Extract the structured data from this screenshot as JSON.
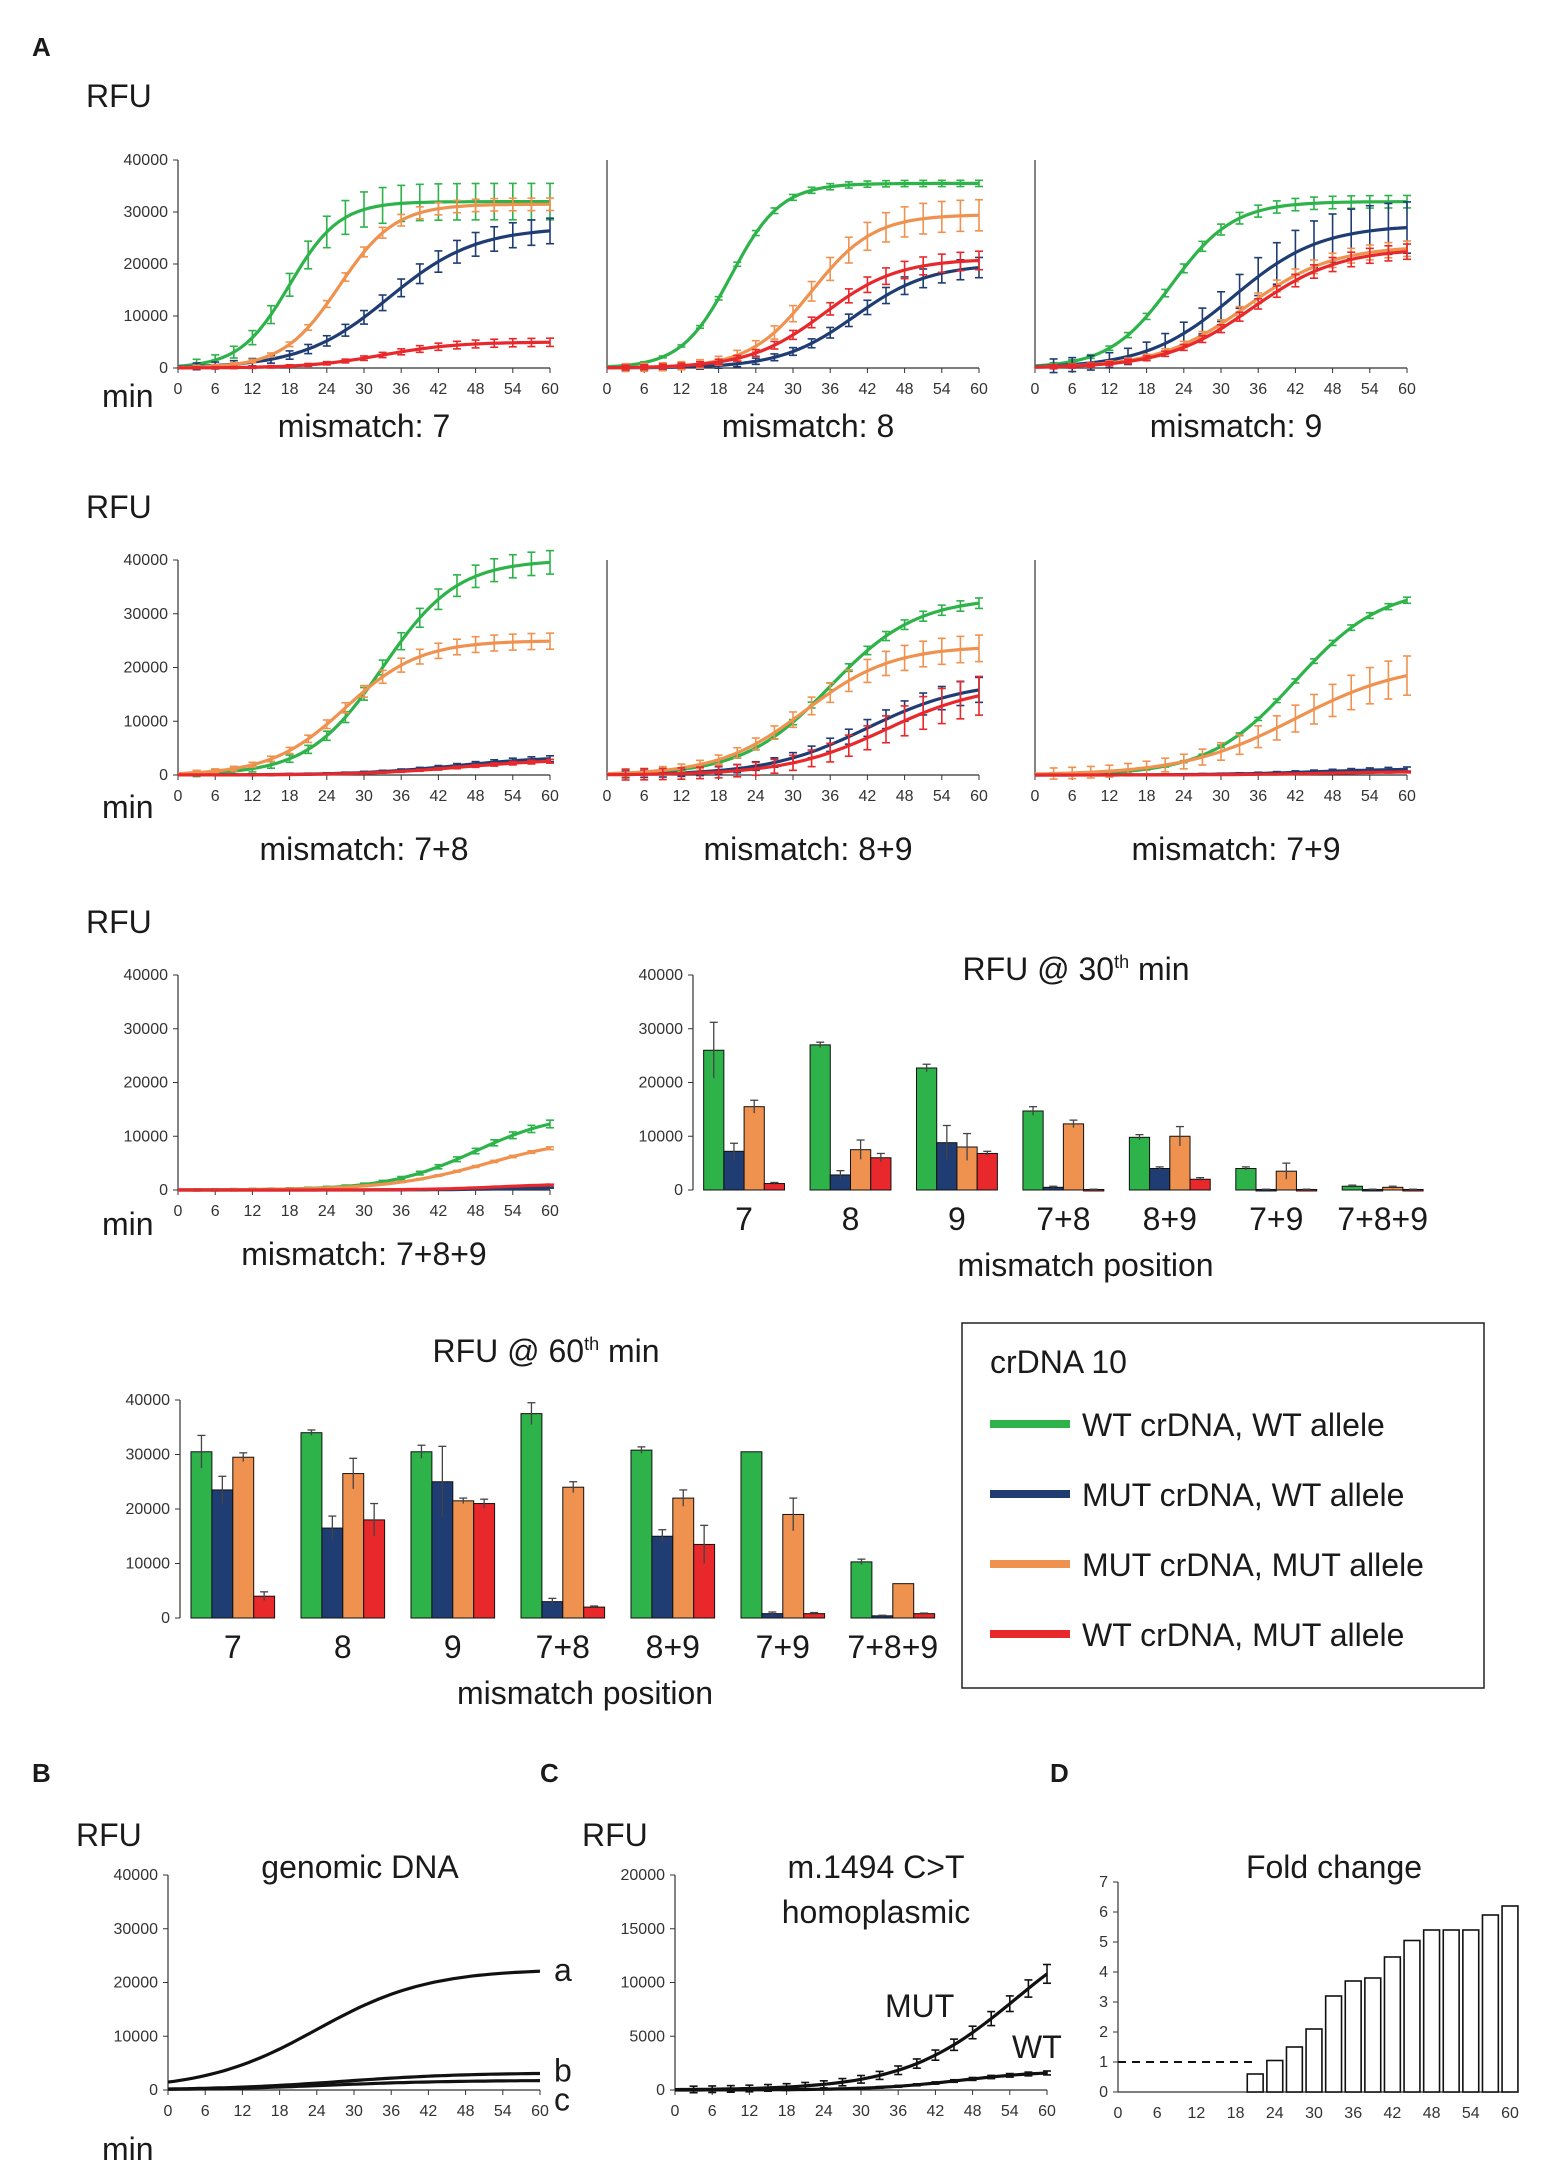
{
  "figure": {
    "panel_labels": [
      "A",
      "B",
      "C",
      "D"
    ],
    "legend": {
      "title": "crDNA 10",
      "entries": [
        {
          "label": "WT crDNA, WT allele",
          "color": "#2db34a"
        },
        {
          "label": "MUT crDNA, WT allele",
          "color": "#1f3d73"
        },
        {
          "label": "MUT crDNA, MUT allele",
          "color": "#f0924f"
        },
        {
          "label": "WT crDNA, MUT allele",
          "color": "#e8282b"
        }
      ]
    }
  },
  "colors": {
    "wt_wt": "#2db34a",
    "mut_wt": "#1f3d73",
    "mut_mut": "#f0924f",
    "wt_mut": "#e8282b",
    "black": "#111111"
  },
  "chart_data": [
    {
      "id": "mm7",
      "type": "line",
      "title": "mismatch: 7",
      "ylabel": "RFU",
      "xlabel": "min",
      "ylim": [
        0,
        40000
      ],
      "yticks": [
        "0",
        "10000",
        "20000",
        "30000",
        "40000"
      ],
      "xlim": [
        0,
        60
      ],
      "xticks": [
        "0",
        "6",
        "12",
        "18",
        "24",
        "30",
        "36",
        "42",
        "48",
        "54",
        "60"
      ],
      "series": [
        {
          "name": "WT crDNA, WT allele",
          "color": "#2db34a",
          "mid": 18,
          "scale": 4,
          "max": 32000,
          "err": 3500
        },
        {
          "name": "MUT crDNA, WT allele",
          "color": "#1f3d73",
          "mid": 34,
          "scale": 7,
          "max": 27000,
          "err": 2500
        },
        {
          "name": "MUT crDNA, MUT allele",
          "color": "#f0924f",
          "mid": 26,
          "scale": 4.5,
          "max": 31500,
          "err": 1200
        },
        {
          "name": "WT crDNA, MUT allele",
          "color": "#e8282b",
          "mid": 33,
          "scale": 6,
          "max": 5000,
          "err": 800
        }
      ]
    },
    {
      "id": "mm8",
      "type": "line",
      "title": "mismatch: 8",
      "ylabel": "",
      "xlabel": "",
      "ylim": [
        0,
        40000
      ],
      "yticks": [],
      "xlim": [
        0,
        60
      ],
      "xticks": [
        "0",
        "6",
        "12",
        "18",
        "24",
        "30",
        "36",
        "42",
        "48",
        "54",
        "60"
      ],
      "series": [
        {
          "name": "WT crDNA, WT allele",
          "color": "#2db34a",
          "mid": 20,
          "scale": 4,
          "max": 35500,
          "err": 600
        },
        {
          "name": "MUT crDNA, WT allele",
          "color": "#1f3d73",
          "mid": 40,
          "scale": 6,
          "max": 20000,
          "err": 2000
        },
        {
          "name": "MUT crDNA, MUT allele",
          "color": "#f0924f",
          "mid": 33,
          "scale": 5,
          "max": 29500,
          "err": 3000
        },
        {
          "name": "WT crDNA, MUT allele",
          "color": "#e8282b",
          "mid": 35,
          "scale": 6,
          "max": 21000,
          "err": 1800
        }
      ]
    },
    {
      "id": "mm9",
      "type": "line",
      "title": "mismatch: 9",
      "ylabel": "",
      "xlabel": "",
      "ylim": [
        0,
        40000
      ],
      "yticks": [],
      "xlim": [
        0,
        60
      ],
      "xticks": [
        "0",
        "6",
        "12",
        "18",
        "24",
        "30",
        "36",
        "42",
        "48",
        "54",
        "60"
      ],
      "series": [
        {
          "name": "WT crDNA, WT allele",
          "color": "#2db34a",
          "mid": 22,
          "scale": 5,
          "max": 32000,
          "err": 1200
        },
        {
          "name": "MUT crDNA, WT allele",
          "color": "#1f3d73",
          "mid": 32,
          "scale": 7,
          "max": 27500,
          "err": 5000
        },
        {
          "name": "MUT crDNA, MUT allele",
          "color": "#f0924f",
          "mid": 34,
          "scale": 7,
          "max": 23500,
          "err": 1500
        },
        {
          "name": "WT crDNA, MUT allele",
          "color": "#e8282b",
          "mid": 35,
          "scale": 7,
          "max": 23000,
          "err": 1500
        }
      ]
    },
    {
      "id": "mm78",
      "type": "line",
      "title": "mismatch: 7+8",
      "ylabel": "RFU",
      "xlabel": "min",
      "ylim": [
        0,
        40000
      ],
      "yticks": [
        "0",
        "10000",
        "20000",
        "30000",
        "40000"
      ],
      "xlim": [
        0,
        60
      ],
      "xticks": [
        "0",
        "6",
        "12",
        "18",
        "24",
        "30",
        "36",
        "42",
        "48",
        "54",
        "60"
      ],
      "series": [
        {
          "name": "WT crDNA, WT allele",
          "color": "#2db34a",
          "mid": 33,
          "scale": 6,
          "max": 40000,
          "err": 2200
        },
        {
          "name": "MUT crDNA, WT allele",
          "color": "#1f3d73",
          "mid": 45,
          "scale": 8,
          "max": 3500,
          "err": 600
        },
        {
          "name": "MUT crDNA, MUT allele",
          "color": "#f0924f",
          "mid": 27,
          "scale": 6,
          "max": 25000,
          "err": 1500
        },
        {
          "name": "WT crDNA, MUT allele",
          "color": "#e8282b",
          "mid": 46,
          "scale": 8,
          "max": 3000,
          "err": 400
        }
      ]
    },
    {
      "id": "mm89",
      "type": "line",
      "title": "mismatch: 8+9",
      "ylabel": "",
      "xlabel": "",
      "ylim": [
        0,
        40000
      ],
      "yticks": [],
      "xlim": [
        0,
        60
      ],
      "xticks": [
        "0",
        "6",
        "12",
        "18",
        "24",
        "30",
        "36",
        "42",
        "48",
        "54",
        "60"
      ],
      "series": [
        {
          "name": "WT crDNA, WT allele",
          "color": "#2db34a",
          "mid": 36,
          "scale": 7,
          "max": 33000,
          "err": 1000
        },
        {
          "name": "MUT crDNA, WT allele",
          "color": "#1f3d73",
          "mid": 42,
          "scale": 8,
          "max": 17500,
          "err": 2500
        },
        {
          "name": "MUT crDNA, MUT allele",
          "color": "#f0924f",
          "mid": 32,
          "scale": 7,
          "max": 24000,
          "err": 2500
        },
        {
          "name": "WT crDNA, MUT allele",
          "color": "#e8282b",
          "mid": 45,
          "scale": 8,
          "max": 17000,
          "err": 4000
        }
      ]
    },
    {
      "id": "mm79",
      "type": "line",
      "title": "mismatch: 7+9",
      "ylabel": "",
      "xlabel": "",
      "ylim": [
        0,
        40000
      ],
      "yticks": [],
      "xlim": [
        0,
        60
      ],
      "xticks": [
        "0",
        "6",
        "12",
        "18",
        "24",
        "30",
        "36",
        "42",
        "48",
        "54",
        "60"
      ],
      "series": [
        {
          "name": "WT crDNA, WT allele",
          "color": "#2db34a",
          "mid": 42,
          "scale": 7,
          "max": 35000,
          "err": 600
        },
        {
          "name": "MUT crDNA, WT allele",
          "color": "#1f3d73",
          "mid": 45,
          "scale": 8,
          "max": 1200,
          "err": 500
        },
        {
          "name": "MUT crDNA, MUT allele",
          "color": "#f0924f",
          "mid": 42,
          "scale": 9,
          "max": 21000,
          "err": 4000
        },
        {
          "name": "WT crDNA, MUT allele",
          "color": "#e8282b",
          "mid": 48,
          "scale": 8,
          "max": 700,
          "err": 200
        }
      ]
    },
    {
      "id": "mm789",
      "type": "line",
      "title": "mismatch: 7+8+9",
      "ylabel": "RFU",
      "xlabel": "min",
      "ylim": [
        0,
        40000
      ],
      "yticks": [
        "0",
        "10000",
        "20000",
        "30000",
        "40000"
      ],
      "xlim": [
        0,
        60
      ],
      "xticks": [
        "0",
        "6",
        "12",
        "18",
        "24",
        "30",
        "36",
        "42",
        "48",
        "54",
        "60"
      ],
      "series": [
        {
          "name": "WT crDNA, WT allele",
          "color": "#2db34a",
          "mid": 48,
          "scale": 7,
          "max": 14500,
          "err": 800
        },
        {
          "name": "MUT crDNA, WT allele",
          "color": "#1f3d73",
          "mid": 55,
          "scale": 6,
          "max": 600,
          "err": 100
        },
        {
          "name": "MUT crDNA, MUT allele",
          "color": "#f0924f",
          "mid": 50,
          "scale": 8,
          "max": 10000,
          "err": 300
        },
        {
          "name": "WT crDNA, MUT allele",
          "color": "#e8282b",
          "mid": 52,
          "scale": 6,
          "max": 1200,
          "err": 150
        }
      ]
    },
    {
      "id": "bar30",
      "type": "bar",
      "title": "RFU @ 30",
      "title_sup": "th",
      "title_end": " min",
      "xlabel": "mismatch position",
      "ylim": [
        0,
        40000
      ],
      "yticks": [
        "0",
        "10000",
        "20000",
        "30000",
        "40000"
      ],
      "categories": [
        "7",
        "8",
        "9",
        "7+8",
        "8+9",
        "7+9",
        "7+8+9"
      ],
      "series": [
        {
          "name": "WT crDNA, WT allele",
          "color": "#2db34a",
          "values": [
            26000,
            27000,
            22700,
            14700,
            9800,
            4000,
            700
          ],
          "errors": [
            5200,
            500,
            700,
            800,
            500,
            300,
            200
          ]
        },
        {
          "name": "MUT crDNA, WT allele",
          "color": "#1f3d73",
          "values": [
            7200,
            2800,
            8800,
            500,
            4000,
            100,
            100
          ],
          "errors": [
            1500,
            800,
            3200,
            200,
            300,
            50,
            50
          ]
        },
        {
          "name": "MUT crDNA, MUT allele",
          "color": "#f0924f",
          "values": [
            15500,
            7500,
            8000,
            12300,
            10000,
            3500,
            500
          ],
          "errors": [
            1200,
            1800,
            2500,
            700,
            1800,
            1500,
            200
          ]
        },
        {
          "name": "WT crDNA, MUT allele",
          "color": "#e8282b",
          "values": [
            1200,
            6000,
            6800,
            100,
            2000,
            100,
            100
          ],
          "errors": [
            200,
            800,
            400,
            50,
            300,
            50,
            50
          ]
        }
      ]
    },
    {
      "id": "bar60",
      "type": "bar",
      "title": "RFU @ 60",
      "title_sup": "th",
      "title_end": " min",
      "xlabel": "mismatch position",
      "ylim": [
        0,
        40000
      ],
      "yticks": [
        "0",
        "10000",
        "20000",
        "30000",
        "40000"
      ],
      "categories": [
        "7",
        "8",
        "9",
        "7+8",
        "8+9",
        "7+9",
        "7+8+9"
      ],
      "series": [
        {
          "name": "WT crDNA, WT allele",
          "color": "#2db34a",
          "values": [
            30500,
            34000,
            30500,
            37500,
            30800,
            30500,
            10300
          ],
          "errors": [
            3000,
            500,
            1200,
            2000,
            600,
            0,
            500
          ]
        },
        {
          "name": "MUT crDNA, WT allele",
          "color": "#1f3d73",
          "values": [
            23500,
            16500,
            25000,
            3000,
            15000,
            800,
            400
          ],
          "errors": [
            2500,
            2200,
            6500,
            600,
            1200,
            300,
            100
          ]
        },
        {
          "name": "MUT crDNA, MUT allele",
          "color": "#f0924f",
          "values": [
            29500,
            26500,
            21500,
            24000,
            22000,
            19000,
            6300
          ],
          "errors": [
            800,
            2800,
            500,
            1000,
            1500,
            3000,
            0
          ]
        },
        {
          "name": "WT crDNA, MUT allele",
          "color": "#e8282b",
          "values": [
            4000,
            18000,
            21000,
            2000,
            13500,
            800,
            800
          ],
          "errors": [
            800,
            3000,
            800,
            200,
            3500,
            200,
            100
          ]
        }
      ]
    },
    {
      "id": "genomic",
      "type": "line",
      "title": "genomic DNA",
      "ylabel": "RFU",
      "xlabel": "min",
      "ylim": [
        0,
        40000
      ],
      "yticks": [
        "0",
        "10000",
        "20000",
        "30000",
        "40000"
      ],
      "xlim": [
        0,
        60
      ],
      "xticks": [
        "0",
        "6",
        "12",
        "18",
        "24",
        "30",
        "36",
        "42",
        "48",
        "54",
        "60"
      ],
      "series": [
        {
          "name": "a",
          "label": "a",
          "color": "#111111",
          "mid": 24,
          "scale": 9,
          "max": 22500,
          "err": 0
        },
        {
          "name": "b",
          "label": "b",
          "color": "#111111",
          "mid": 28,
          "scale": 10,
          "max": 3200,
          "err": 0
        },
        {
          "name": "c",
          "label": "c",
          "color": "#111111",
          "mid": 26,
          "scale": 10,
          "max": 1800,
          "err": 0
        }
      ]
    },
    {
      "id": "homoplasmic",
      "type": "line",
      "title": "m.1494 C>T",
      "subtitle": "homoplasmic",
      "ylabel": "RFU",
      "xlabel": "",
      "ylim": [
        0,
        20000
      ],
      "yticks": [
        "0",
        "5000",
        "10000",
        "15000",
        "20000"
      ],
      "xlim": [
        0,
        60
      ],
      "xticks": [
        "0",
        "6",
        "12",
        "18",
        "24",
        "30",
        "36",
        "42",
        "48",
        "54",
        "60"
      ],
      "series": [
        {
          "name": "MUT",
          "label": "MUT",
          "color": "#111111",
          "mid": 55,
          "scale": 9,
          "max": 17000,
          "err": 1200
        },
        {
          "name": "WT",
          "label": "WT",
          "color": "#111111",
          "mid": 46,
          "scale": 7,
          "max": 1800,
          "err": 200
        }
      ]
    },
    {
      "id": "fold",
      "type": "bar",
      "title": "Fold change",
      "ylim": [
        0,
        7
      ],
      "yticks": [
        "0",
        "1",
        "2",
        "3",
        "4",
        "5",
        "6",
        "7"
      ],
      "x": [
        "0",
        "3",
        "6",
        "9",
        "12",
        "15",
        "18",
        "21",
        "24",
        "27",
        "30",
        "33",
        "36",
        "39",
        "42",
        "45",
        "48",
        "51",
        "54",
        "57",
        "60"
      ],
      "xticks": [
        "0",
        "6",
        "12",
        "18",
        "24",
        "30",
        "36",
        "42",
        "48",
        "54",
        "60"
      ],
      "values": [
        0,
        0,
        0,
        0,
        0,
        0,
        0,
        0.6,
        1.05,
        1.5,
        2.1,
        3.2,
        3.7,
        3.8,
        4.5,
        5.05,
        5.4,
        5.4,
        5.4,
        5.9,
        6.2
      ],
      "reference_line": 1
    }
  ]
}
